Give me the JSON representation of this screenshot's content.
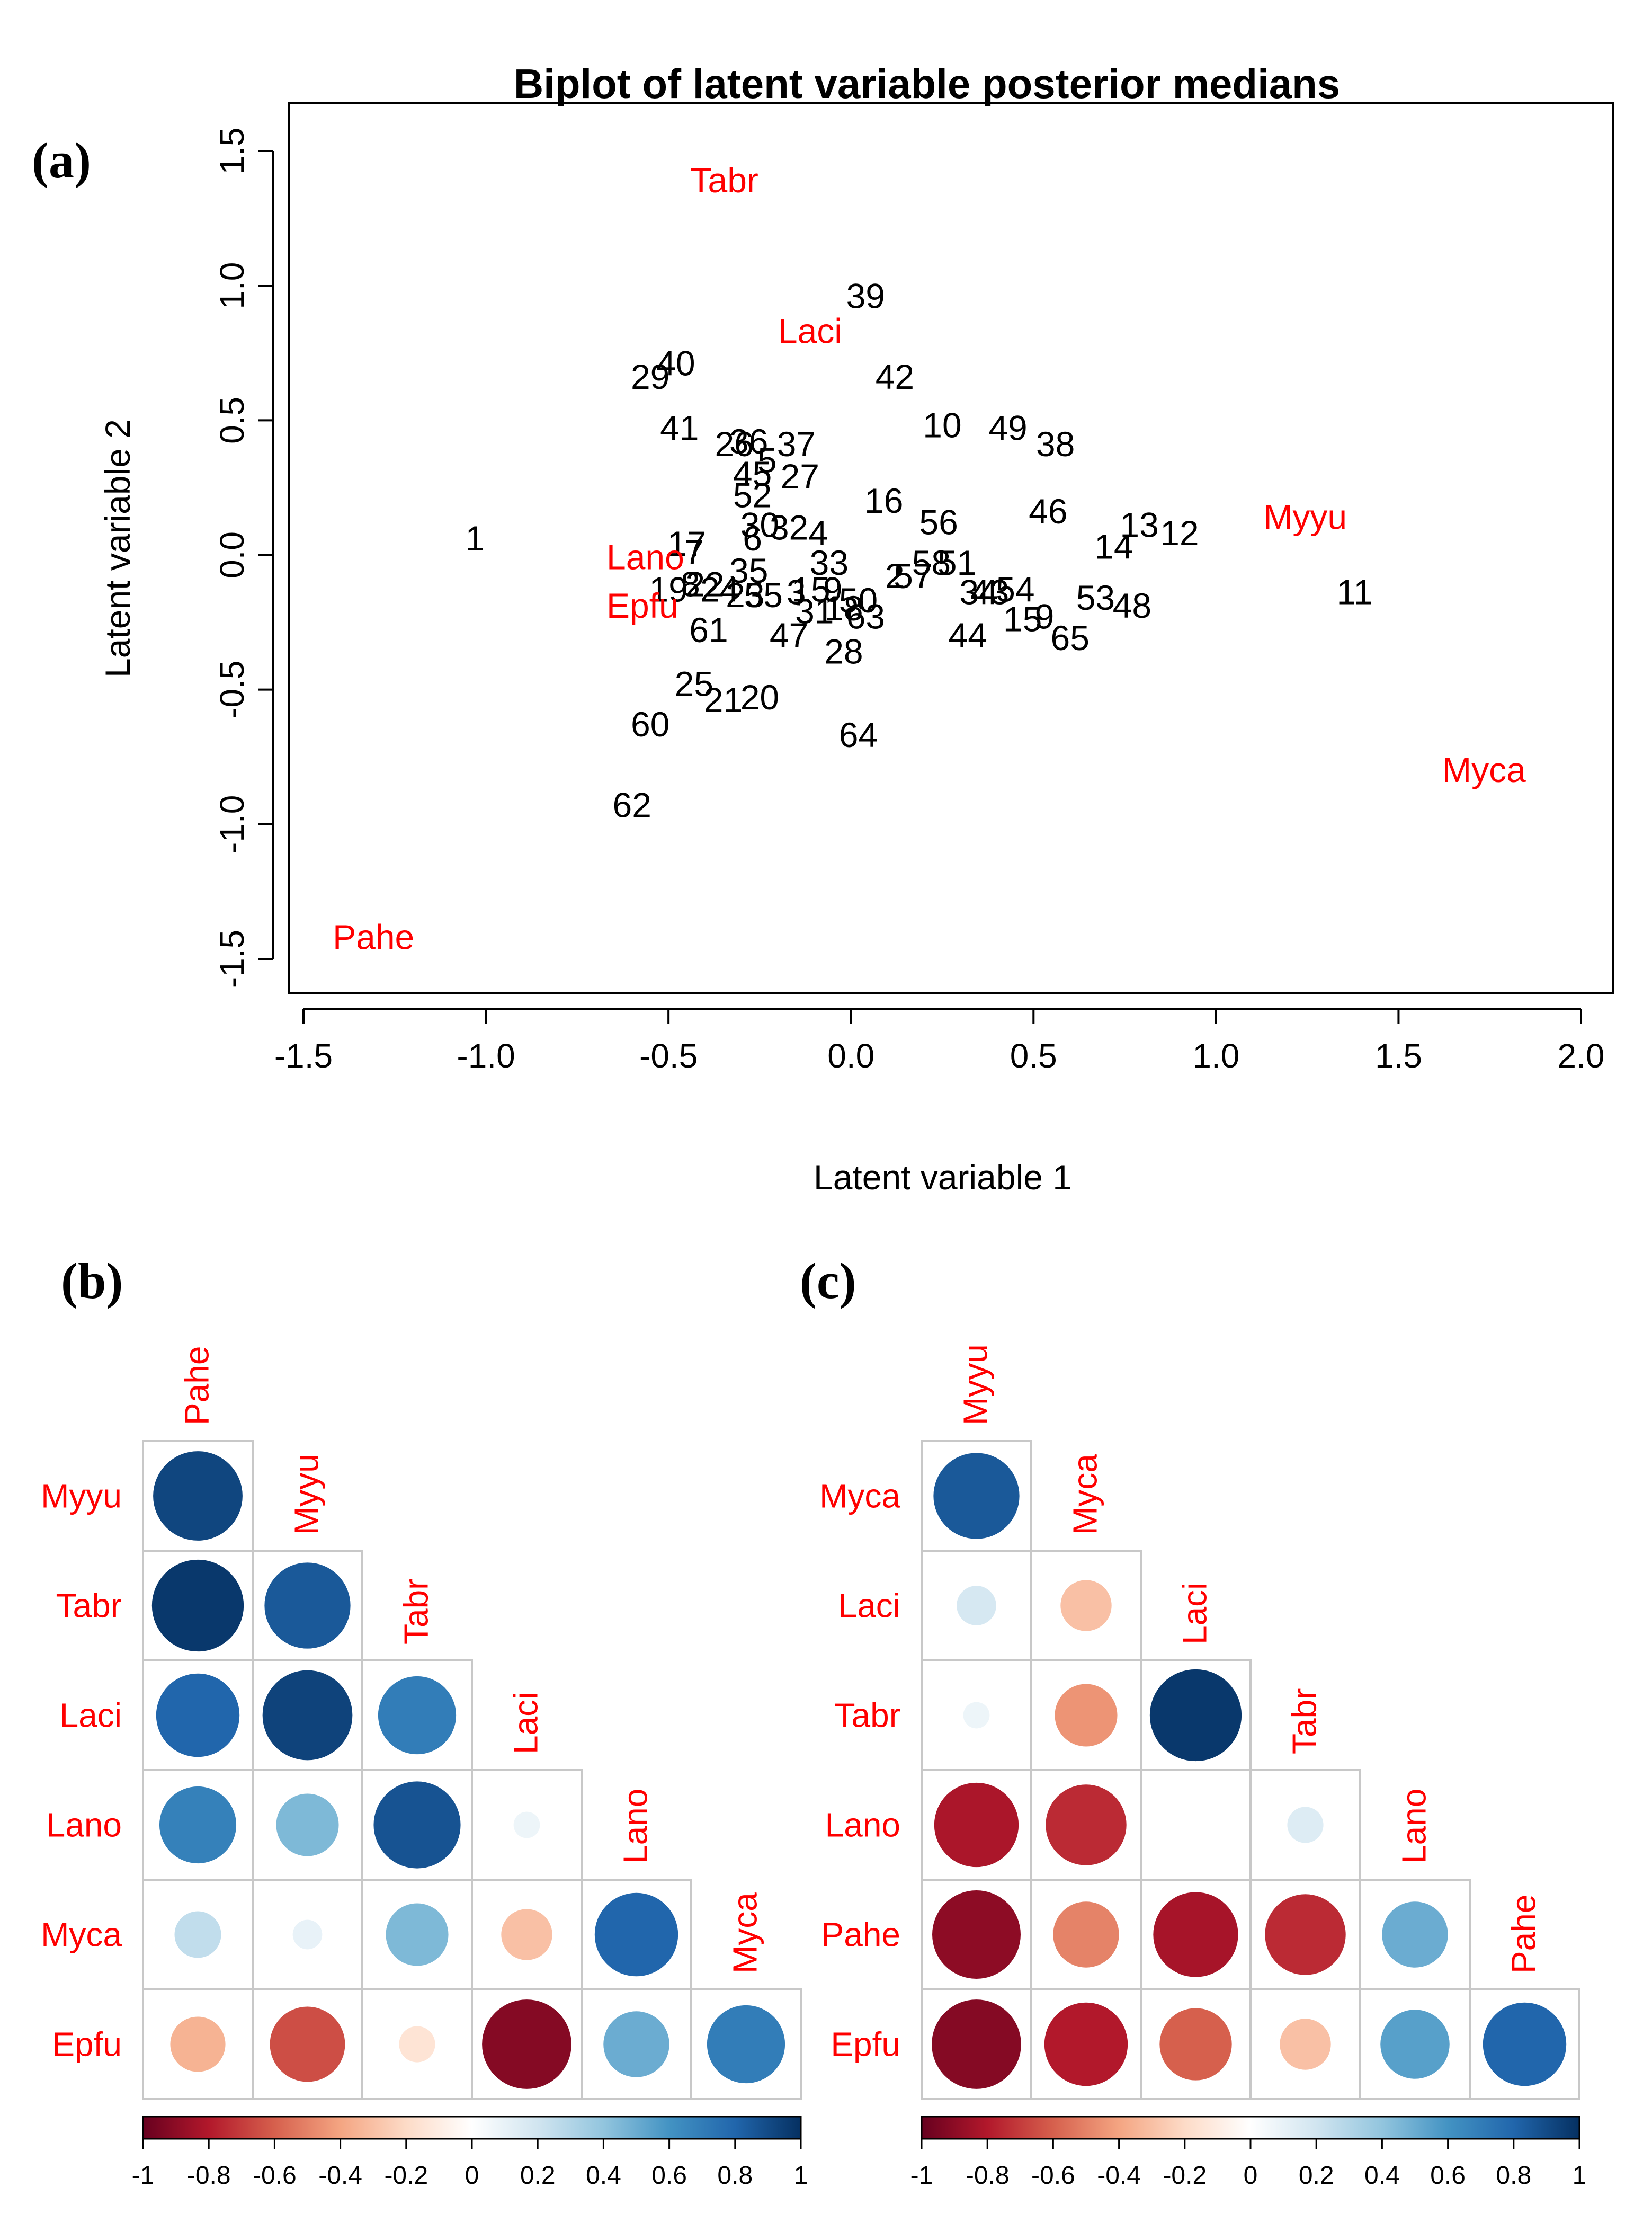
{
  "panel_labels": {
    "a": "(a)",
    "b": "(b)",
    "c": "(c)"
  },
  "chart_data": [
    {
      "type": "scatter",
      "title": "Biplot of latent variable posterior medians",
      "xlabel": "Latent variable 1",
      "ylabel": "Latent variable 2",
      "xlim": [
        -1.55,
        2.05
      ],
      "ylim": [
        -1.65,
        1.65
      ],
      "xticks": [
        -1.5,
        -1.0,
        -0.5,
        0.0,
        0.5,
        1.0,
        1.5,
        2.0
      ],
      "xtick_labels": [
        "-1.5",
        "-1.0",
        "-0.5",
        "0.0",
        "0.5",
        "1.0",
        "1.5",
        "2.0"
      ],
      "yticks": [
        -1.5,
        -1.0,
        -0.5,
        0.0,
        0.5,
        1.0,
        1.5
      ],
      "ytick_labels": [
        "-1.5",
        "-1.0",
        "-0.5",
        "0.0",
        "0.5",
        "1.0",
        "1.5"
      ],
      "sites": [
        {
          "label": "39",
          "x": 0.04,
          "y": 0.96
        },
        {
          "label": "29",
          "x": -0.55,
          "y": 0.66
        },
        {
          "label": "40",
          "x": -0.48,
          "y": 0.71
        },
        {
          "label": "42",
          "x": 0.12,
          "y": 0.66
        },
        {
          "label": "41",
          "x": -0.47,
          "y": 0.47
        },
        {
          "label": "10",
          "x": 0.25,
          "y": 0.48
        },
        {
          "label": "49",
          "x": 0.43,
          "y": 0.47
        },
        {
          "label": "38",
          "x": 0.56,
          "y": 0.41
        },
        {
          "label": "26",
          "x": -0.32,
          "y": 0.41
        },
        {
          "label": "36",
          "x": -0.28,
          "y": 0.42
        },
        {
          "label": "37",
          "x": -0.15,
          "y": 0.41
        },
        {
          "label": "45",
          "x": -0.27,
          "y": 0.3
        },
        {
          "label": "5",
          "x": -0.23,
          "y": 0.35
        },
        {
          "label": "27",
          "x": -0.14,
          "y": 0.29
        },
        {
          "label": "52",
          "x": -0.27,
          "y": 0.22
        },
        {
          "label": "16",
          "x": 0.09,
          "y": 0.2
        },
        {
          "label": "56",
          "x": 0.24,
          "y": 0.12
        },
        {
          "label": "46",
          "x": 0.54,
          "y": 0.16
        },
        {
          "label": "13",
          "x": 0.79,
          "y": 0.11
        },
        {
          "label": "12",
          "x": 0.9,
          "y": 0.08
        },
        {
          "label": "14",
          "x": 0.72,
          "y": 0.03
        },
        {
          "label": "30",
          "x": -0.25,
          "y": 0.11
        },
        {
          "label": "32",
          "x": -0.17,
          "y": 0.1
        },
        {
          "label": "4",
          "x": -0.09,
          "y": 0.08
        },
        {
          "label": "6",
          "x": -0.27,
          "y": 0.06
        },
        {
          "label": "1",
          "x": -1.03,
          "y": 0.06
        },
        {
          "label": "17",
          "x": -0.45,
          "y": 0.04
        },
        {
          "label": "7",
          "x": -0.43,
          "y": 0.01
        },
        {
          "label": "33",
          "x": -0.06,
          "y": -0.03
        },
        {
          "label": "58",
          "x": 0.22,
          "y": -0.03
        },
        {
          "label": "51",
          "x": 0.29,
          "y": -0.03
        },
        {
          "label": "2",
          "x": 0.12,
          "y": -0.08
        },
        {
          "label": "57",
          "x": 0.17,
          "y": -0.08
        },
        {
          "label": "35",
          "x": -0.28,
          "y": -0.06
        },
        {
          "label": "19",
          "x": -0.5,
          "y": -0.13
        },
        {
          "label": "8",
          "x": -0.44,
          "y": -0.11
        },
        {
          "label": "22",
          "x": -0.4,
          "y": -0.11
        },
        {
          "label": "24",
          "x": -0.36,
          "y": -0.13
        },
        {
          "label": "23",
          "x": -0.29,
          "y": -0.15
        },
        {
          "label": "55",
          "x": -0.24,
          "y": -0.15
        },
        {
          "label": "3",
          "x": -0.15,
          "y": -0.14
        },
        {
          "label": "15",
          "x": -0.11,
          "y": -0.13
        },
        {
          "label": "9",
          "x": -0.05,
          "y": -0.13
        },
        {
          "label": "50",
          "x": 0.02,
          "y": -0.17
        },
        {
          "label": "18",
          "x": -0.02,
          "y": -0.2
        },
        {
          "label": "31",
          "x": -0.1,
          "y": -0.21
        },
        {
          "label": "63",
          "x": 0.04,
          "y": -0.23
        },
        {
          "label": "34",
          "x": 0.35,
          "y": -0.14
        },
        {
          "label": "43",
          "x": 0.38,
          "y": -0.14
        },
        {
          "label": "54",
          "x": 0.45,
          "y": -0.13
        },
        {
          "label": "53",
          "x": 0.67,
          "y": -0.16
        },
        {
          "label": "48",
          "x": 0.77,
          "y": -0.19
        },
        {
          "label": "11",
          "x": 1.38,
          "y": -0.14
        },
        {
          "label": "15",
          "x": 0.47,
          "y": -0.24
        },
        {
          "label": "9",
          "x": 0.53,
          "y": -0.23
        },
        {
          "label": "44",
          "x": 0.32,
          "y": -0.3
        },
        {
          "label": "65",
          "x": 0.6,
          "y": -0.31
        },
        {
          "label": "61",
          "x": -0.39,
          "y": -0.28
        },
        {
          "label": "47",
          "x": -0.17,
          "y": -0.3
        },
        {
          "label": "28",
          "x": -0.02,
          "y": -0.36
        },
        {
          "label": "25",
          "x": -0.43,
          "y": -0.48
        },
        {
          "label": "21",
          "x": -0.35,
          "y": -0.54
        },
        {
          "label": "20",
          "x": -0.25,
          "y": -0.53
        },
        {
          "label": "60",
          "x": -0.55,
          "y": -0.63
        },
        {
          "label": "64",
          "x": 0.02,
          "y": -0.67
        },
        {
          "label": "62",
          "x": -0.6,
          "y": -0.93
        }
      ],
      "species": [
        {
          "label": "Tabr",
          "x": -0.44,
          "y": 1.39
        },
        {
          "label": "Laci",
          "x": -0.2,
          "y": 0.83
        },
        {
          "label": "Myyu",
          "x": 1.13,
          "y": 0.14
        },
        {
          "label": "Lano",
          "x": -0.67,
          "y": -0.01
        },
        {
          "label": "Epfu",
          "x": -0.67,
          "y": -0.19
        },
        {
          "label": "Myca",
          "x": 1.62,
          "y": -0.8
        },
        {
          "label": "Pahe",
          "x": -1.42,
          "y": -1.42
        }
      ]
    },
    {
      "type": "heatmap",
      "subtype": "correlation-lower-triangle",
      "columns": [
        "Pahe",
        "Myyu",
        "Tabr",
        "Laci",
        "Lano",
        "Myca"
      ],
      "rows": [
        "Myyu",
        "Tabr",
        "Laci",
        "Lano",
        "Myca",
        "Epfu"
      ],
      "values": [
        [
          0.92
        ],
        [
          0.97,
          0.85
        ],
        [
          0.8,
          0.93,
          0.7
        ],
        [
          0.68,
          0.45,
          0.87,
          0.08
        ],
        [
          0.25,
          0.1,
          0.45,
          -0.3,
          0.8
        ],
        [
          -0.35,
          -0.65,
          -0.15,
          -0.92,
          0.5,
          0.7
        ]
      ],
      "colorbar_range": [
        -1,
        1
      ],
      "colorbar_ticks": [
        "-1",
        "-0.8",
        "-0.6",
        "-0.4",
        "-0.2",
        "0",
        "0.2",
        "0.4",
        "0.6",
        "0.8",
        "1"
      ]
    },
    {
      "type": "heatmap",
      "subtype": "correlation-lower-triangle",
      "columns": [
        "Myyu",
        "Myca",
        "Laci",
        "Tabr",
        "Lano",
        "Pahe"
      ],
      "rows": [
        "Myca",
        "Laci",
        "Tabr",
        "Lano",
        "Pahe",
        "Epfu"
      ],
      "values": [
        [
          0.85
        ],
        [
          0.18,
          -0.3
        ],
        [
          0.08,
          -0.45,
          0.97
        ],
        [
          -0.82,
          -0.75,
          0.0,
          0.15
        ],
        [
          -0.9,
          -0.5,
          -0.83,
          -0.75,
          0.5
        ],
        [
          -0.92,
          -0.8,
          -0.6,
          -0.3,
          0.55,
          0.8
        ]
      ],
      "colorbar_range": [
        -1,
        1
      ],
      "colorbar_ticks": [
        "-1",
        "-0.8",
        "-0.6",
        "-0.4",
        "-0.2",
        "0",
        "0.2",
        "0.4",
        "0.6",
        "0.8",
        "1"
      ]
    }
  ]
}
